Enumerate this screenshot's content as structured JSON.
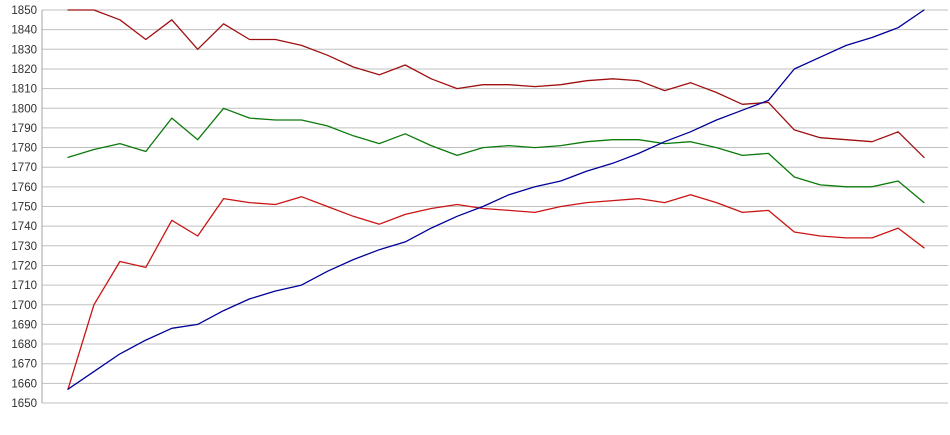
{
  "chart_data": {
    "type": "line",
    "title": "",
    "xlabel": "",
    "ylabel": "",
    "x_axis": {
      "labels_visible": false,
      "num_points": 34
    },
    "y_axis": {
      "min": 1650,
      "max": 1850,
      "step": 10,
      "tick_labels": [
        "1850",
        "1840",
        "1830",
        "1820",
        "1810",
        "1800",
        "1790",
        "1780",
        "1770",
        "1760",
        "1750",
        "1740",
        "1730",
        "1720",
        "1710",
        "1700",
        "1690",
        "1680",
        "1670",
        "1660",
        "1650"
      ]
    },
    "grid": {
      "horizontal": true,
      "vertical": false,
      "color": "#c0c0c0"
    },
    "axis_line_color": "#a6a6a6",
    "background_color": "#ffffff",
    "legend": {
      "visible": false
    },
    "series": [
      {
        "name": "upper-bound-dark-red",
        "color": "#9e1010",
        "values": [
          1850,
          1850,
          1845,
          1835,
          1845,
          1830,
          1843,
          1835,
          1835,
          1832,
          1827,
          1821,
          1817,
          1822,
          1815,
          1810,
          1812,
          1812,
          1811,
          1812,
          1814,
          1815,
          1814,
          1809,
          1813,
          1808,
          1802,
          1803,
          1789,
          1785,
          1784,
          1783,
          1788,
          1775
        ]
      },
      {
        "name": "mean-green",
        "color": "#0b7a0b",
        "values": [
          1775,
          1779,
          1782,
          1778,
          1795,
          1784,
          1800,
          1795,
          1794,
          1794,
          1791,
          1786,
          1782,
          1787,
          1781,
          1776,
          1780,
          1781,
          1780,
          1781,
          1783,
          1784,
          1784,
          1782,
          1783,
          1780,
          1776,
          1777,
          1765,
          1761,
          1760,
          1760,
          1763,
          1752
        ]
      },
      {
        "name": "lower-bound-red",
        "color": "#cc1414",
        "values": [
          1657,
          1700,
          1722,
          1719,
          1743,
          1735,
          1754,
          1752,
          1751,
          1755,
          1750,
          1745,
          1741,
          1746,
          1749,
          1751,
          1749,
          1748,
          1747,
          1750,
          1752,
          1753,
          1754,
          1752,
          1756,
          1752,
          1747,
          1748,
          1737,
          1735,
          1734,
          1734,
          1739,
          1729
        ]
      },
      {
        "name": "rating-blue",
        "color": "#000099",
        "values": [
          1657,
          1666,
          1675,
          1682,
          1688,
          1690,
          1697,
          1703,
          1707,
          1710,
          1717,
          1723,
          1728,
          1732,
          1739,
          1745,
          1750,
          1756,
          1760,
          1763,
          1768,
          1772,
          1777,
          1783,
          1788,
          1794,
          1799,
          1804,
          1820,
          1826,
          1832,
          1836,
          1841,
          1850
        ]
      }
    ]
  }
}
